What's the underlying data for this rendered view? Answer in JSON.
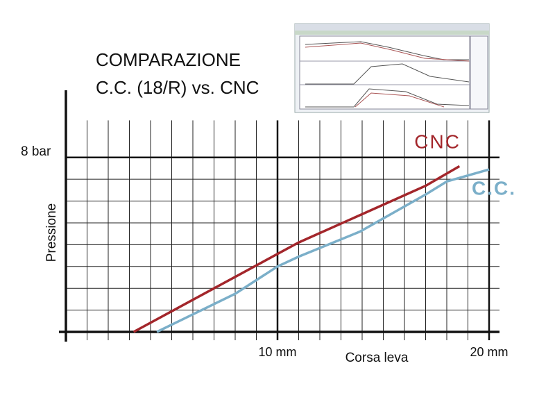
{
  "chart_data": {
    "type": "line",
    "title": "COMPARAZIONE",
    "subtitle": "C.C. (18/R) vs. CNC",
    "x_label": "Corsa leva",
    "y_label": "Pressione",
    "series": [
      {
        "name": "CNC",
        "color": "#a3262b",
        "x": [
          3.2,
          11,
          17,
          18.6
        ],
        "values": [
          0,
          4.1,
          6.7,
          7.6
        ]
      },
      {
        "name": "C.C.",
        "color": "#7bafc9",
        "x": [
          4.3,
          8,
          10,
          11,
          13.9,
          17,
          18,
          20
        ],
        "values": [
          0,
          1.75,
          3,
          3.45,
          4.6,
          6.3,
          6.9,
          7.45
        ]
      }
    ],
    "xlim": [
      0,
      20
    ],
    "ylim": [
      0,
      9.7
    ],
    "xticks": [
      {
        "value": 10,
        "label": "10 mm"
      },
      {
        "value": 20,
        "label": "20 mm"
      }
    ],
    "yticks": [
      {
        "value": 8,
        "label": "8 bar"
      }
    ],
    "xgrid": [
      1,
      2,
      3,
      4,
      5,
      6,
      7,
      8,
      9,
      11,
      12,
      13,
      14,
      15,
      16,
      17,
      18,
      19
    ],
    "ygrid": [
      1,
      2,
      3,
      4,
      5,
      6,
      7
    ],
    "grid": true
  }
}
